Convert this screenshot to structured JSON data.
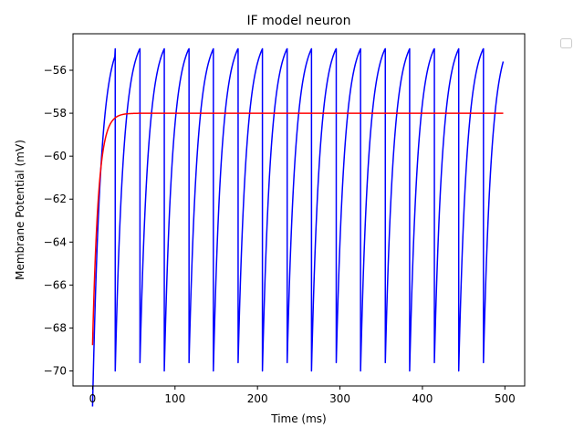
{
  "chart_data": {
    "type": "line",
    "title": "IF model neuron",
    "xlabel": "Time (ms)",
    "ylabel": "Membrane Potential (mV)",
    "xlim": [
      -23.7,
      524.0
    ],
    "ylim": [
      -70.7,
      -54.3
    ],
    "x_ticks": [
      0,
      100,
      200,
      300,
      400,
      500
    ],
    "y_ticks": [
      -70,
      -68,
      -66,
      -64,
      -62,
      -60,
      -58,
      -56
    ],
    "x_tick_labels": [
      "0",
      "100",
      "200",
      "300",
      "400",
      "500"
    ],
    "y_tick_labels": [
      "−70",
      "−68",
      "−66",
      "−64",
      "−62",
      "−60",
      "−58",
      "−56"
    ],
    "grid": false,
    "legend": {
      "position": "outside-top-right",
      "entries": []
    },
    "series": [
      {
        "color": "#0000ff",
        "kind": "spiking",
        "reset": -70,
        "threshold": -55,
        "period": 29.75,
        "start_value": -68.5,
        "first_spike": 27.5,
        "end_x": 498,
        "end_value": -55.9
      },
      {
        "color": "#ff0000",
        "kind": "relaxation",
        "start_value": -68.8,
        "steady_value": -58,
        "x_start": 0,
        "x_end": 498
      }
    ]
  },
  "colors": {
    "spiking_trace": "#0000ff",
    "mean_trace": "#ff0000",
    "axes": "#000000",
    "legend_border": "#cccccc"
  }
}
